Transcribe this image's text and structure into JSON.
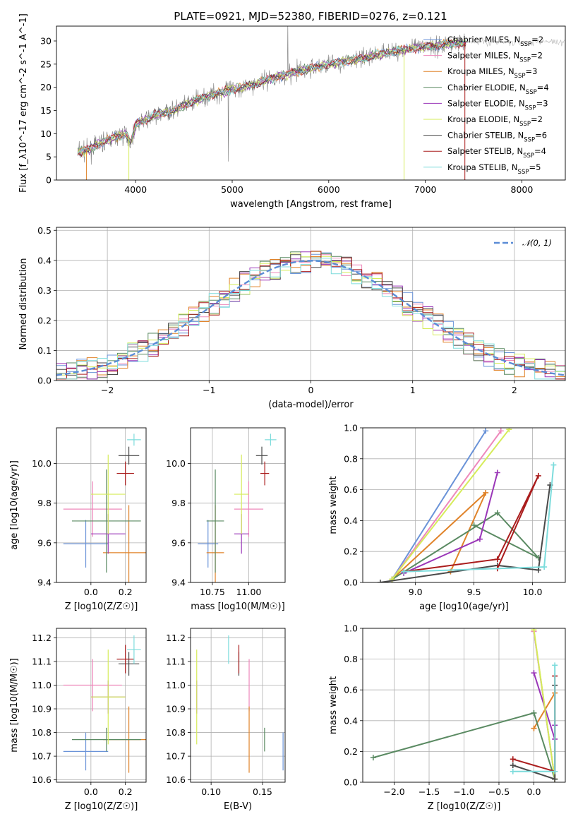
{
  "figure_title": "PLATE=0921, MJD=52380, FIBERID=0276, z=0.121",
  "colors": {
    "Chabrier MILES": "#6a93d8",
    "Salpeter MILES": "#ee88bb",
    "Kroupa MILES": "#e0832a",
    "Chabrier ELODIE": "#5a8a62",
    "Salpeter ELODIE": "#9a36b8",
    "Kroupa ELODIE": "#d6ec5a",
    "Chabrier STELIB": "#4a4a4a",
    "Salpeter STELIB": "#aa1c1c",
    "Kroupa STELIB": "#7ddcdc",
    "spectrum": "#808080",
    "gaussian": "#5b8cd6"
  },
  "chart_data": [
    {
      "id": "spectrum",
      "type": "line",
      "xlabel": "wavelength [Angstrom, rest frame]",
      "ylabel": "Flux [f_λ10^-17 erg cm^-2 s^-1 A^-1]",
      "xlim": [
        3180,
        8450
      ],
      "ylim": [
        0,
        33.2
      ],
      "xticks": [
        "4000",
        "5000",
        "6000",
        "7000",
        "8000"
      ],
      "yticks": [
        "0",
        "5",
        "10",
        "15",
        "20",
        "25",
        "30"
      ],
      "grid": false,
      "legend_position": "top-right",
      "legend": [
        {
          "name": "Chabrier MILES",
          "nssp": "2"
        },
        {
          "name": "Salpeter MILES",
          "nssp": "2"
        },
        {
          "name": "Kroupa MILES",
          "nssp": "3"
        },
        {
          "name": "Chabrier ELODIE",
          "nssp": "4"
        },
        {
          "name": "Salpeter ELODIE",
          "nssp": "3"
        },
        {
          "name": "Kroupa ELODIE",
          "nssp": "2"
        },
        {
          "name": "Chabrier STELIB",
          "nssp": "6"
        },
        {
          "name": "Salpeter STELIB",
          "nssp": "4"
        },
        {
          "name": "Kroupa STELIB",
          "nssp": "5"
        }
      ],
      "continuum": [
        [
          3400,
          6
        ],
        [
          3500,
          6.5
        ],
        [
          3700,
          8.5
        ],
        [
          3900,
          10
        ],
        [
          3950,
          8
        ],
        [
          4000,
          12
        ],
        [
          4200,
          14
        ],
        [
          4400,
          15
        ],
        [
          4600,
          17
        ],
        [
          4800,
          18.5
        ],
        [
          5000,
          19.5
        ],
        [
          5200,
          20.5
        ],
        [
          5500,
          22.5
        ],
        [
          5800,
          24
        ],
        [
          6000,
          25
        ],
        [
          6300,
          26
        ],
        [
          6600,
          27.5
        ],
        [
          6900,
          28.5
        ],
        [
          7100,
          29
        ],
        [
          7300,
          29.5
        ],
        [
          7400,
          29.5
        ]
      ]
    },
    {
      "id": "residuals",
      "type": "step",
      "xlabel": "(data-model)/error",
      "ylabel": "Normed distribution",
      "xlim": [
        -2.5,
        2.5
      ],
      "ylim": [
        0,
        0.51
      ],
      "xticks": [
        "-2",
        "-1",
        "0",
        "1",
        "2"
      ],
      "yticks": [
        "0.0",
        "0.1",
        "0.2",
        "0.3",
        "0.4",
        "0.5"
      ],
      "grid": true,
      "legend_position": "top-right",
      "reference_curve": "N(0,1)",
      "bin_width": 0.1
    },
    {
      "id": "age-vs-Z",
      "type": "scatter-errorbar",
      "xlabel": "Z [log10(Z/Z☉)]",
      "ylabel": "age [log10(age/yr)]",
      "xlim": [
        -0.2,
        0.32
      ],
      "ylim": [
        9.4,
        10.18
      ],
      "xticks": [
        "0.0",
        "0.2"
      ],
      "yticks": [
        "9.4",
        "9.6",
        "9.8",
        "10.0"
      ],
      "grid": true,
      "points": [
        {
          "model": "Chabrier MILES",
          "x": -0.03,
          "y": 9.595,
          "xerr": 0.13,
          "yerr": 0.12
        },
        {
          "model": "Salpeter MILES",
          "x": 0.01,
          "y": 9.77,
          "xerr": 0.17,
          "yerr": 0.14
        },
        {
          "model": "Kroupa MILES",
          "x": 0.22,
          "y": 9.55,
          "xerr": 0.15,
          "yerr": 0.24
        },
        {
          "model": "Chabrier ELODIE",
          "x": 0.09,
          "y": 9.71,
          "xerr": 0.2,
          "yerr": 0.26
        },
        {
          "model": "Salpeter ELODIE",
          "x": 0.1,
          "y": 9.645,
          "xerr": 0.1,
          "yerr": 0.1
        },
        {
          "model": "Kroupa ELODIE",
          "x": 0.1,
          "y": 9.845,
          "xerr": 0.1,
          "yerr": 0.2
        },
        {
          "model": "Chabrier STELIB",
          "x": 0.22,
          "y": 10.04,
          "xerr": 0.06,
          "yerr": 0.045
        },
        {
          "model": "Salpeter STELIB",
          "x": 0.2,
          "y": 9.95,
          "xerr": 0.05,
          "yerr": 0.06
        },
        {
          "model": "Kroupa STELIB",
          "x": 0.25,
          "y": 10.12,
          "xerr": 0.04,
          "yerr": 0.03
        }
      ]
    },
    {
      "id": "age-vs-mass",
      "type": "scatter-errorbar",
      "xlabel": "mass [log10(M/M☉)]",
      "ylabel": "",
      "xlim": [
        10.6,
        11.25
      ],
      "ylim": [
        9.4,
        10.18
      ],
      "xticks": [
        "10.75",
        "11.00"
      ],
      "yticks": [
        "9.4",
        "9.6",
        "9.8",
        "10.0"
      ],
      "grid": true,
      "points": [
        {
          "model": "Chabrier MILES",
          "x": 10.72,
          "y": 9.595,
          "xerr": 0.07,
          "yerr": 0.12
        },
        {
          "model": "Salpeter MILES",
          "x": 11.0,
          "y": 9.77,
          "xerr": 0.1,
          "yerr": 0.14
        },
        {
          "model": "Kroupa MILES",
          "x": 10.77,
          "y": 9.55,
          "xerr": 0.06,
          "yerr": 0.24
        },
        {
          "model": "Chabrier ELODIE",
          "x": 10.77,
          "y": 9.71,
          "xerr": 0.06,
          "yerr": 0.26
        },
        {
          "model": "Salpeter ELODIE",
          "x": 10.95,
          "y": 9.645,
          "xerr": 0.05,
          "yerr": 0.1
        },
        {
          "model": "Kroupa ELODIE",
          "x": 10.95,
          "y": 9.845,
          "xerr": 0.05,
          "yerr": 0.2
        },
        {
          "model": "Chabrier STELIB",
          "x": 11.09,
          "y": 10.04,
          "xerr": 0.04,
          "yerr": 0.045
        },
        {
          "model": "Salpeter STELIB",
          "x": 11.11,
          "y": 9.95,
          "xerr": 0.03,
          "yerr": 0.06
        },
        {
          "model": "Kroupa STELIB",
          "x": 11.15,
          "y": 10.12,
          "xerr": 0.04,
          "yerr": 0.03
        }
      ]
    },
    {
      "id": "weight-vs-age",
      "type": "line",
      "xlabel": "age [log10(age/yr)]",
      "ylabel": "mass weight",
      "xlim": [
        8.55,
        10.28
      ],
      "ylim": [
        0,
        1.0
      ],
      "xticks": [
        "9.0",
        "9.5",
        "10.0"
      ],
      "yticks": [
        "0.0",
        "0.2",
        "0.4",
        "0.6",
        "0.8",
        "1.0"
      ],
      "grid": true,
      "series": [
        {
          "model": "Chabrier MILES",
          "points": [
            [
              8.8,
              0.02
            ],
            [
              9.6,
              0.98
            ]
          ]
        },
        {
          "model": "Salpeter MILES",
          "points": [
            [
              8.8,
              0.02
            ],
            [
              9.73,
              0.98
            ]
          ]
        },
        {
          "model": "Kroupa MILES",
          "points": [
            [
              9.3,
              0.07
            ],
            [
              9.6,
              0.58
            ],
            [
              8.8,
              0.02
            ]
          ]
        },
        {
          "model": "Chabrier ELODIE",
          "points": [
            [
              8.8,
              0.02
            ],
            [
              9.7,
              0.45
            ],
            [
              10.05,
              0.16
            ],
            [
              9.5,
              0.37
            ]
          ]
        },
        {
          "model": "Salpeter ELODIE",
          "points": [
            [
              8.9,
              0.06
            ],
            [
              9.55,
              0.28
            ],
            [
              9.7,
              0.71
            ]
          ]
        },
        {
          "model": "Kroupa ELODIE",
          "points": [
            [
              8.8,
              0.02
            ],
            [
              9.8,
              0.99
            ]
          ]
        },
        {
          "model": "Chabrier STELIB",
          "points": [
            [
              8.7,
              0.0
            ],
            [
              9.7,
              0.11
            ],
            [
              10.05,
              0.08
            ],
            [
              10.15,
              0.63
            ]
          ]
        },
        {
          "model": "Salpeter STELIB",
          "points": [
            [
              8.9,
              0.07
            ],
            [
              9.7,
              0.15
            ],
            [
              10.05,
              0.69
            ],
            [
              9.7,
              0.09
            ]
          ]
        },
        {
          "model": "Kroupa STELIB",
          "points": [
            [
              8.9,
              0.07
            ],
            [
              10.1,
              0.1
            ],
            [
              10.18,
              0.76
            ]
          ]
        }
      ]
    },
    {
      "id": "mass-vs-Z",
      "type": "scatter-errorbar",
      "xlabel": "Z [log10(Z/Z☉)]",
      "ylabel": "mass [log10(M/M☉)]",
      "xlim": [
        -0.2,
        0.32
      ],
      "ylim": [
        10.59,
        11.24
      ],
      "xticks": [
        "0.0",
        "0.2"
      ],
      "yticks": [
        "10.6",
        "10.7",
        "10.8",
        "10.9",
        "11.0",
        "11.1",
        "11.2"
      ],
      "grid": true,
      "points": [
        {
          "model": "Chabrier MILES",
          "x": -0.03,
          "y": 10.72,
          "xerr": 0.13,
          "yerr": 0.08
        },
        {
          "model": "Salpeter MILES",
          "x": 0.01,
          "y": 11.0,
          "xerr": 0.17,
          "yerr": 0.11
        },
        {
          "model": "Kroupa MILES",
          "x": 0.22,
          "y": 10.77,
          "xerr": 0.15,
          "yerr": 0.14
        },
        {
          "model": "Chabrier ELODIE",
          "x": 0.09,
          "y": 10.77,
          "xerr": 0.2,
          "yerr": 0.05
        },
        {
          "model": "Salpeter ELODIE",
          "x": 0.1,
          "y": 10.95,
          "xerr": 0.1,
          "yerr": 0.07
        },
        {
          "model": "Kroupa ELODIE",
          "x": 0.1,
          "y": 10.95,
          "xerr": 0.1,
          "yerr": 0.2
        },
        {
          "model": "Chabrier STELIB",
          "x": 0.22,
          "y": 11.09,
          "xerr": 0.06,
          "yerr": 0.05
        },
        {
          "model": "Salpeter STELIB",
          "x": 0.2,
          "y": 11.11,
          "xerr": 0.05,
          "yerr": 0.06
        },
        {
          "model": "Kroupa STELIB",
          "x": 0.25,
          "y": 11.15,
          "xerr": 0.04,
          "yerr": 0.06
        }
      ]
    },
    {
      "id": "mass-vs-EBV",
      "type": "scatter-errorbar",
      "xlabel": "E(B-V)",
      "ylabel": "",
      "xlim": [
        0.08,
        0.172
      ],
      "ylim": [
        10.59,
        11.24
      ],
      "xticks": [
        "0.10",
        "0.15"
      ],
      "yticks": [
        "10.6",
        "10.7",
        "10.8",
        "10.9",
        "11.0",
        "11.1",
        "11.2"
      ],
      "grid": true,
      "points": [
        {
          "model": "Chabrier MILES",
          "x": 0.17,
          "y": 10.72,
          "xerr": 0,
          "yerr": 0.08
        },
        {
          "model": "Salpeter MILES",
          "x": 0.137,
          "y": 11.0,
          "xerr": 0,
          "yerr": 0.11
        },
        {
          "model": "Kroupa MILES",
          "x": 0.137,
          "y": 10.77,
          "xerr": 0,
          "yerr": 0.14
        },
        {
          "model": "Chabrier ELODIE",
          "x": 0.152,
          "y": 10.77,
          "xerr": 0,
          "yerr": 0.05
        },
        {
          "model": "Salpeter ELODIE",
          "x": 0.086,
          "y": 10.95,
          "xerr": 0,
          "yerr": 0.07
        },
        {
          "model": "Kroupa ELODIE",
          "x": 0.086,
          "y": 10.95,
          "xerr": 0,
          "yerr": 0.2
        },
        {
          "model": "Chabrier STELIB",
          "x": 0.127,
          "y": 11.09,
          "xerr": 0,
          "yerr": 0.05
        },
        {
          "model": "Salpeter STELIB",
          "x": 0.127,
          "y": 11.11,
          "xerr": 0,
          "yerr": 0.06
        },
        {
          "model": "Kroupa STELIB",
          "x": 0.117,
          "y": 11.15,
          "xerr": 0,
          "yerr": 0.06
        }
      ]
    },
    {
      "id": "weight-vs-Z",
      "type": "line",
      "xlabel": "Z [log10(Z/Z☉)]",
      "ylabel": "mass weight",
      "xlim": [
        -2.45,
        0.45
      ],
      "ylim": [
        0,
        1.0
      ],
      "xticks": [
        "-2.0",
        "-1.5",
        "-1.0",
        "-0.5",
        "0.0"
      ],
      "yticks": [
        "0.0",
        "0.2",
        "0.4",
        "0.6",
        "0.8",
        "1.0"
      ],
      "grid": true,
      "series": [
        {
          "model": "Chabrier MILES",
          "points": [
            [
              0.0,
              0.98
            ],
            [
              0.3,
              0.02
            ]
          ]
        },
        {
          "model": "Salpeter MILES",
          "points": [
            [
              0.0,
              0.98
            ],
            [
              0.3,
              0.02
            ]
          ]
        },
        {
          "model": "Kroupa MILES",
          "points": [
            [
              0.0,
              0.35
            ],
            [
              0.3,
              0.58
            ],
            [
              0.3,
              0.02
            ]
          ]
        },
        {
          "model": "Chabrier ELODIE",
          "points": [
            [
              -2.3,
              0.16
            ],
            [
              0.0,
              0.45
            ],
            [
              0.3,
              0.02
            ]
          ]
        },
        {
          "model": "Salpeter ELODIE",
          "points": [
            [
              0.0,
              0.71
            ],
            [
              0.3,
              0.28
            ],
            [
              0.3,
              0.37
            ]
          ]
        },
        {
          "model": "Kroupa ELODIE",
          "points": [
            [
              0.0,
              0.99
            ],
            [
              0.3,
              0.02
            ]
          ]
        },
        {
          "model": "Chabrier STELIB",
          "points": [
            [
              -0.3,
              0.11
            ],
            [
              0.3,
              0.02
            ],
            [
              0.3,
              0.63
            ]
          ]
        },
        {
          "model": "Salpeter STELIB",
          "points": [
            [
              -0.3,
              0.15
            ],
            [
              0.3,
              0.07
            ],
            [
              0.3,
              0.69
            ]
          ]
        },
        {
          "model": "Kroupa STELIB",
          "points": [
            [
              -0.3,
              0.07
            ],
            [
              0.3,
              0.07
            ],
            [
              0.3,
              0.76
            ]
          ]
        }
      ]
    }
  ]
}
